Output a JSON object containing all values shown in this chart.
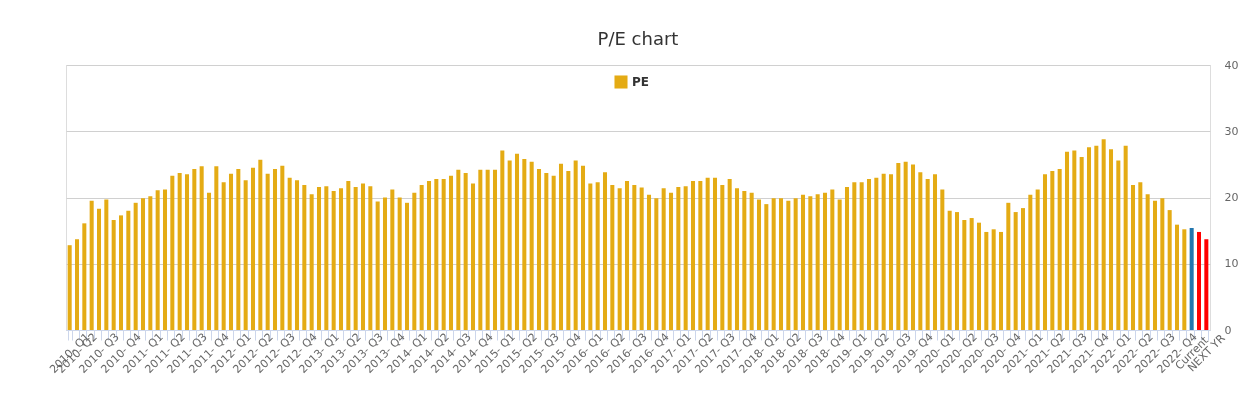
{
  "chart_data": {
    "type": "bar",
    "title": "P/E chart",
    "categories": [
      "2010- Q1",
      "2010- Q2",
      null,
      null,
      "2010- Q3",
      null,
      null,
      "2010- Q4",
      null,
      null,
      "2011- Q1",
      null,
      null,
      "2011- Q2",
      null,
      null,
      "2011- Q3",
      null,
      null,
      "2011- Q4",
      null,
      null,
      "2012- Q1",
      null,
      null,
      "2012- Q2",
      null,
      null,
      "2012- Q3",
      null,
      null,
      "2012- Q4",
      null,
      null,
      "2013- Q1",
      null,
      null,
      "2013- Q2",
      null,
      null,
      "2013- Q3",
      null,
      null,
      "2013- Q4",
      null,
      null,
      "2014- Q1",
      null,
      null,
      "2014- Q2",
      null,
      null,
      "2014- Q3",
      null,
      null,
      "2014- Q4",
      null,
      null,
      "2015- Q1",
      null,
      null,
      "2015- Q2",
      null,
      null,
      "2015- Q3",
      null,
      null,
      "2015- Q4",
      null,
      null,
      "2016- Q1",
      null,
      null,
      "2016- Q2",
      null,
      null,
      "2016- Q3",
      null,
      null,
      "2016- Q4",
      null,
      null,
      "2017- Q1",
      null,
      null,
      "2017- Q2",
      null,
      null,
      "2017- Q3",
      null,
      null,
      "2017- Q4",
      null,
      null,
      "2018- Q1",
      null,
      null,
      "2018- Q2",
      null,
      null,
      "2018- Q3",
      null,
      null,
      "2018- Q4",
      null,
      null,
      "2019- Q1",
      null,
      null,
      "2019- Q2",
      null,
      null,
      "2019- Q3",
      null,
      null,
      "2019- Q4",
      null,
      null,
      "2020- Q1",
      null,
      null,
      "2020- Q2",
      null,
      null,
      "2020- Q3",
      null,
      null,
      "2020- Q4",
      null,
      null,
      "2021- Q1",
      null,
      null,
      "2021- Q2",
      null,
      null,
      "2021- Q3",
      null,
      null,
      "2021- Q4",
      null,
      null,
      "2022- Q1",
      null,
      null,
      "2022- Q2",
      null,
      null,
      "2022- Q3",
      null,
      null,
      "2022- Q4",
      null,
      "Current",
      null,
      "NEXT YR"
    ],
    "series": [
      {
        "name": "PE",
        "color": "#e4ab14",
        "colors": [
          "#e4ab14",
          "#e4ab14",
          "#e4ab14",
          "#e4ab14",
          "#e4ab14",
          "#e4ab14",
          "#e4ab14",
          "#e4ab14",
          "#e4ab14",
          "#e4ab14",
          "#e4ab14",
          "#e4ab14",
          "#e4ab14",
          "#e4ab14",
          "#e4ab14",
          "#e4ab14",
          "#e4ab14",
          "#e4ab14",
          "#e4ab14",
          "#e4ab14",
          "#e4ab14",
          "#e4ab14",
          "#e4ab14",
          "#e4ab14",
          "#e4ab14",
          "#e4ab14",
          "#e4ab14",
          "#e4ab14",
          "#e4ab14",
          "#e4ab14",
          "#e4ab14",
          "#e4ab14",
          "#e4ab14",
          "#e4ab14",
          "#e4ab14",
          "#e4ab14",
          "#e4ab14",
          "#e4ab14",
          "#e4ab14",
          "#e4ab14",
          "#e4ab14",
          "#e4ab14",
          "#e4ab14",
          "#e4ab14",
          "#e4ab14",
          "#e4ab14",
          "#e4ab14",
          "#e4ab14",
          "#e4ab14",
          "#e4ab14",
          "#e4ab14",
          "#e4ab14",
          "#e4ab14",
          "#e4ab14",
          "#e4ab14",
          "#e4ab14",
          "#e4ab14",
          "#e4ab14",
          "#e4ab14",
          "#e4ab14",
          "#e4ab14",
          "#e4ab14",
          "#e4ab14",
          "#e4ab14",
          "#e4ab14",
          "#e4ab14",
          "#e4ab14",
          "#e4ab14",
          "#e4ab14",
          "#e4ab14",
          "#e4ab14",
          "#e4ab14",
          "#e4ab14",
          "#e4ab14",
          "#e4ab14",
          "#e4ab14",
          "#e4ab14",
          "#e4ab14",
          "#e4ab14",
          "#e4ab14",
          "#e4ab14",
          "#e4ab14",
          "#e4ab14",
          "#e4ab14",
          "#e4ab14",
          "#e4ab14",
          "#e4ab14",
          "#e4ab14",
          "#e4ab14",
          "#e4ab14",
          "#e4ab14",
          "#e4ab14",
          "#e4ab14",
          "#e4ab14",
          "#e4ab14",
          "#e4ab14",
          "#e4ab14",
          "#e4ab14",
          "#e4ab14",
          "#e4ab14",
          "#e4ab14",
          "#e4ab14",
          "#e4ab14",
          "#e4ab14",
          "#e4ab14",
          "#e4ab14",
          "#e4ab14",
          "#e4ab14",
          "#e4ab14",
          "#e4ab14",
          "#e4ab14",
          "#e4ab14",
          "#e4ab14",
          "#e4ab14",
          "#e4ab14",
          "#e4ab14",
          "#e4ab14",
          "#e4ab14",
          "#e4ab14",
          "#e4ab14",
          "#e4ab14",
          "#e4ab14",
          "#e4ab14",
          "#e4ab14",
          "#e4ab14",
          "#e4ab14",
          "#e4ab14",
          "#e4ab14",
          "#e4ab14",
          "#e4ab14",
          "#e4ab14",
          "#e4ab14",
          "#e4ab14",
          "#e4ab14",
          "#e4ab14",
          "#e4ab14",
          "#e4ab14",
          "#e4ab14",
          "#e4ab14",
          "#e4ab14",
          "#e4ab14",
          "#e4ab14",
          "#e4ab14",
          "#e4ab14",
          "#e4ab14",
          "#e4ab14",
          "#e4ab14",
          "#e4ab14",
          "#e4ab14",
          "#e4ab14",
          "#e4ab14",
          "#e4ab14",
          "#e4ab14",
          "#2176ae",
          "#ff0000",
          "#ff0000"
        ],
        "values": [
          12.8,
          13.7,
          16.1,
          19.5,
          18.3,
          19.7,
          16.6,
          17.3,
          18.0,
          19.2,
          19.9,
          20.2,
          21.1,
          21.2,
          23.3,
          23.7,
          23.5,
          24.3,
          24.7,
          20.7,
          24.7,
          22.3,
          23.6,
          24.3,
          22.6,
          24.5,
          25.7,
          23.6,
          24.3,
          24.8,
          23.0,
          22.6,
          21.9,
          20.5,
          21.6,
          21.7,
          21.0,
          21.4,
          22.5,
          21.6,
          22.1,
          21.7,
          19.4,
          20.0,
          21.2,
          20.0,
          19.2,
          20.7,
          21.9,
          22.5,
          22.8,
          22.8,
          23.3,
          24.2,
          23.7,
          22.1,
          24.2,
          24.2,
          24.2,
          27.1,
          25.6,
          26.6,
          25.8,
          25.4,
          24.3,
          23.7,
          23.3,
          25.1,
          24.0,
          25.6,
          24.8,
          22.1,
          22.3,
          23.8,
          21.9,
          21.4,
          22.5,
          21.9,
          21.5,
          20.4,
          19.9,
          21.4,
          20.7,
          21.6,
          21.7,
          22.5,
          22.5,
          23.0,
          23.0,
          21.9,
          22.8,
          21.4,
          21.0,
          20.7,
          19.7,
          19.0,
          19.9,
          19.9,
          19.5,
          19.9,
          20.4,
          20.2,
          20.5,
          20.7,
          21.2,
          19.7,
          21.6,
          22.3,
          22.3,
          22.8,
          23.0,
          23.6,
          23.5,
          25.2,
          25.4,
          25.0,
          23.8,
          22.8,
          23.5,
          21.2,
          18.0,
          17.8,
          16.6,
          16.9,
          16.2,
          14.8,
          15.2,
          14.8,
          19.2,
          17.8,
          18.4,
          20.4,
          21.2,
          23.5,
          24.0,
          24.3,
          26.9,
          27.1,
          26.1,
          27.6,
          27.8,
          28.8,
          27.3,
          25.6,
          27.8,
          21.9,
          22.3,
          20.5,
          19.5,
          19.9,
          18.1,
          15.9,
          15.2,
          15.4,
          14.8,
          13.7
        ]
      }
    ],
    "ylim": [
      0,
      40
    ],
    "yticks": [
      0,
      10,
      20,
      30,
      40
    ],
    "grid": "y",
    "legend": "top"
  }
}
